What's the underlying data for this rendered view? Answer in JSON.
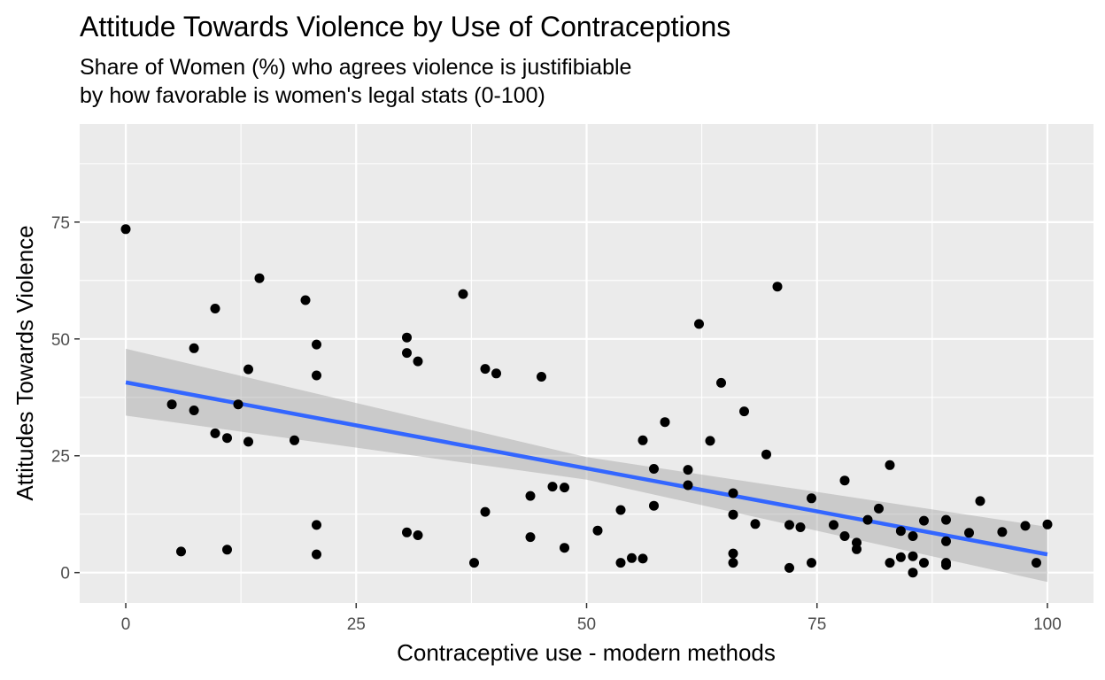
{
  "chart_data": {
    "type": "scatter",
    "title": "Attitude Towards Violence by Use of Contraceptions",
    "subtitle": [
      "Share of Women (%) who agrees violence is justifibiable",
      "by how favorable is women's legal stats (0-100)"
    ],
    "xlabel": "Contraceptive use - modern methods",
    "ylabel": "Attitudes Towards Violence",
    "xlim": [
      -5,
      105
    ],
    "ylim": [
      -6.5,
      96
    ],
    "x_ticks": [
      0,
      25,
      50,
      75,
      100
    ],
    "y_ticks": [
      0,
      25,
      50,
      75
    ],
    "x_minor": [
      12.5,
      37.5,
      62.5,
      87.5
    ],
    "y_minor": [
      12.5,
      37.5,
      62.5,
      87.5
    ],
    "grid": true,
    "points": [
      [
        0,
        73.5
      ],
      [
        5,
        36
      ],
      [
        6,
        4.5
      ],
      [
        7.4,
        48
      ],
      [
        7.4,
        34.7
      ],
      [
        9.7,
        56.5
      ],
      [
        9.7,
        29.8
      ],
      [
        11,
        28.8
      ],
      [
        11,
        4.9
      ],
      [
        12.2,
        36
      ],
      [
        13.3,
        43.5
      ],
      [
        13.3,
        28
      ],
      [
        14.5,
        63
      ],
      [
        18.3,
        28.3
      ],
      [
        19.5,
        58.3
      ],
      [
        20.7,
        48.8
      ],
      [
        20.7,
        42.2
      ],
      [
        20.7,
        10.2
      ],
      [
        20.7,
        3.9
      ],
      [
        30.5,
        50.3
      ],
      [
        30.5,
        47
      ],
      [
        30.5,
        8.6
      ],
      [
        31.7,
        45.2
      ],
      [
        31.7,
        8
      ],
      [
        36.6,
        59.6
      ],
      [
        37.8,
        2.1
      ],
      [
        39,
        43.6
      ],
      [
        39,
        13
      ],
      [
        40.2,
        42.6
      ],
      [
        43.9,
        16.4
      ],
      [
        43.9,
        7.6
      ],
      [
        45.1,
        41.9
      ],
      [
        46.3,
        18.4
      ],
      [
        47.6,
        18.2
      ],
      [
        47.6,
        5.3
      ],
      [
        51.2,
        9
      ],
      [
        53.7,
        13.4
      ],
      [
        53.7,
        2.1
      ],
      [
        54.9,
        3.1
      ],
      [
        56.1,
        28.3
      ],
      [
        56.1,
        3
      ],
      [
        57.3,
        22.2
      ],
      [
        57.3,
        14.3
      ],
      [
        58.5,
        32.2
      ],
      [
        61,
        22
      ],
      [
        61,
        18.7
      ],
      [
        62.2,
        53.2
      ],
      [
        63.4,
        28.2
      ],
      [
        64.6,
        40.6
      ],
      [
        65.9,
        17
      ],
      [
        65.9,
        12.4
      ],
      [
        65.9,
        4.1
      ],
      [
        65.9,
        2.1
      ],
      [
        67.1,
        34.5
      ],
      [
        68.3,
        10.4
      ],
      [
        69.5,
        25.3
      ],
      [
        70.7,
        61.2
      ],
      [
        72,
        10.2
      ],
      [
        72,
        1
      ],
      [
        73.2,
        9.7
      ],
      [
        74.4,
        15.9
      ],
      [
        74.4,
        2.1
      ],
      [
        76.8,
        10.2
      ],
      [
        78,
        19.7
      ],
      [
        78,
        7.8
      ],
      [
        79.3,
        6.4
      ],
      [
        79.3,
        5
      ],
      [
        80.5,
        11.3
      ],
      [
        81.7,
        13.7
      ],
      [
        82.9,
        23
      ],
      [
        82.9,
        2.1
      ],
      [
        84.1,
        8.9
      ],
      [
        84.1,
        3.3
      ],
      [
        85.4,
        7.8
      ],
      [
        85.4,
        3.5
      ],
      [
        85.4,
        0
      ],
      [
        86.6,
        11.1
      ],
      [
        86.6,
        2.1
      ],
      [
        89,
        11.3
      ],
      [
        89,
        6.7
      ],
      [
        89,
        2.1
      ],
      [
        89,
        1.6
      ],
      [
        91.5,
        8.5
      ],
      [
        92.7,
        15.3
      ],
      [
        95.1,
        8.7
      ],
      [
        97.6,
        10
      ],
      [
        98.8,
        2.1
      ],
      [
        100,
        10.3
      ]
    ],
    "trend_line": {
      "method": "lm",
      "color": "#3366FF",
      "band_color": "#999999",
      "x": [
        0,
        100
      ],
      "y": [
        40.7,
        3.9
      ],
      "ci_lower": [
        33.6,
        -2
      ],
      "ci_mid_x": 50,
      "ci_mid_lower": 19.9,
      "ci_mid_upper": 24.7,
      "ci_upper": [
        47.9,
        9.8
      ]
    },
    "colors": {
      "panel": "#EBEBEB",
      "grid": "#FFFFFF",
      "point": "#000000"
    }
  }
}
